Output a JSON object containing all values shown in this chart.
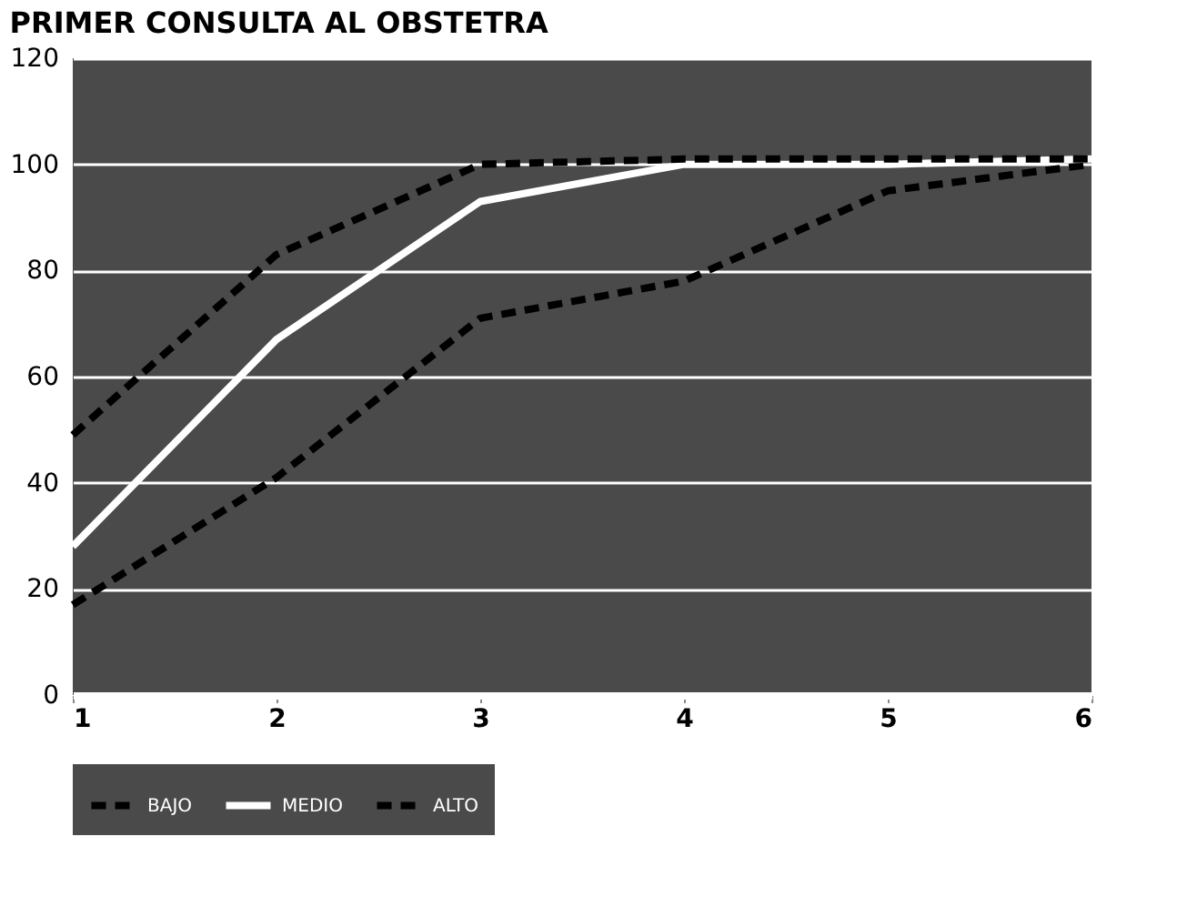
{
  "chart_data": {
    "type": "line",
    "title": "PRIMER CONSULTA AL OBSTETRA",
    "x": [
      1,
      2,
      3,
      4,
      5,
      6
    ],
    "xlim": [
      1,
      6
    ],
    "xticks": [
      1,
      2,
      3,
      4,
      5,
      6
    ],
    "ylim": [
      0,
      120
    ],
    "yticks": [
      0,
      20,
      40,
      60,
      80,
      100,
      120
    ],
    "grid": "y",
    "legend": "bottom",
    "marker": "none",
    "series": [
      {
        "name": "BAJO",
        "color": "#000000",
        "line_style": "dashed",
        "values": [
          17,
          41,
          71,
          78,
          95,
          100
        ]
      },
      {
        "name": "MEDIO",
        "color": "#ffffff",
        "line_style": "solid",
        "values": [
          28,
          67,
          93,
          100,
          100,
          101
        ]
      },
      {
        "name": "ALTO",
        "color": "#000000",
        "line_style": "dashed",
        "values": [
          49,
          83,
          100,
          101,
          101,
          101
        ]
      }
    ]
  }
}
